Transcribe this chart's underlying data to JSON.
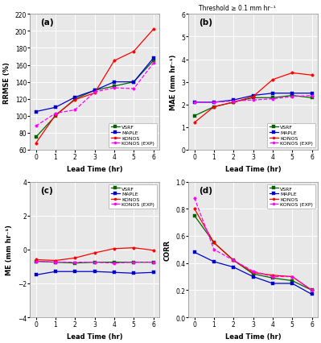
{
  "lead_time": [
    0,
    1,
    2,
    3,
    4,
    5,
    6
  ],
  "rrmse": {
    "VSRF": [
      75,
      100,
      120,
      130,
      135,
      140,
      165
    ],
    "MAPLE": [
      105,
      110,
      122,
      130,
      140,
      140,
      168
    ],
    "KONOS": [
      68,
      101,
      119,
      127,
      165,
      176,
      202
    ],
    "KONOS_EXP": [
      88,
      103,
      107,
      128,
      133,
      132,
      162
    ]
  },
  "mae": {
    "VSRF": [
      1.5,
      1.9,
      2.1,
      2.3,
      2.3,
      2.4,
      2.3
    ],
    "MAPLE": [
      2.1,
      2.1,
      2.2,
      2.4,
      2.5,
      2.5,
      2.5
    ],
    "KONOS": [
      1.2,
      1.9,
      2.1,
      2.35,
      3.1,
      3.4,
      3.3
    ],
    "KONOS_EXP": [
      2.1,
      2.1,
      2.15,
      2.2,
      2.25,
      2.35,
      2.4
    ]
  },
  "me": {
    "VSRF": [
      -0.7,
      -0.75,
      -0.8,
      -0.75,
      -0.75,
      -0.75,
      -0.75
    ],
    "MAPLE": [
      -1.5,
      -1.3,
      -1.3,
      -1.3,
      -1.35,
      -1.4,
      -1.35
    ],
    "KONOS": [
      -0.6,
      -0.65,
      -0.5,
      -0.2,
      0.05,
      0.1,
      -0.05
    ],
    "KONOS_EXP": [
      -0.7,
      -0.75,
      -0.75,
      -0.75,
      -0.8,
      -0.75,
      -0.75
    ]
  },
  "corr": {
    "VSRF": [
      0.75,
      0.55,
      0.42,
      0.32,
      0.29,
      0.27,
      0.2
    ],
    "MAPLE": [
      0.48,
      0.41,
      0.37,
      0.3,
      0.25,
      0.25,
      0.17
    ],
    "KONOS": [
      0.8,
      0.55,
      0.42,
      0.33,
      0.31,
      0.3,
      0.2
    ],
    "KONOS_EXP": [
      0.88,
      0.5,
      0.42,
      0.34,
      0.3,
      0.3,
      0.2
    ]
  },
  "colors": {
    "VSRF": "#006400",
    "MAPLE": "#0000CC",
    "KONOS": "#FF0000",
    "KONOS_EXP": "#FF00FF"
  },
  "markers": {
    "VSRF": "s",
    "MAPLE": "s",
    "KONOS": "o",
    "KONOS_EXP": "o"
  },
  "linestyles": {
    "VSRF": "-",
    "MAPLE": "-",
    "KONOS": "-",
    "KONOS_EXP": "--"
  },
  "threshold_text": "Threshold ≥ 0.1 mm hr⁻¹",
  "bg_color": "#e8e8e8"
}
